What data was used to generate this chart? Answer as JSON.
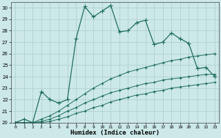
{
  "xlabel": "Humidex (Indice chaleur)",
  "ylabel": "",
  "xlim": [
    -0.5,
    23.5
  ],
  "ylim": [
    20,
    30.5
  ],
  "yticks": [
    20,
    21,
    22,
    23,
    24,
    25,
    26,
    27,
    28,
    29,
    30
  ],
  "xticks": [
    0,
    1,
    2,
    3,
    4,
    5,
    6,
    7,
    8,
    9,
    10,
    11,
    12,
    13,
    14,
    15,
    16,
    17,
    18,
    19,
    20,
    21,
    22,
    23
  ],
  "bg_color": "#cce8e8",
  "grid_color": "#aacccc",
  "line_color": "#1a6b5a",
  "series": [
    [
      20.0,
      20.3,
      20.0,
      22.7,
      22.0,
      21.7,
      22.0,
      27.3,
      30.1,
      29.2,
      29.7,
      30.2,
      27.9,
      28.0,
      28.7,
      28.9,
      26.8,
      27.0,
      27.8,
      27.3,
      26.9,
      24.7,
      24.8,
      24.0
    ],
    [
      20.0,
      20.0,
      20.0,
      20.3,
      20.6,
      21.0,
      21.5,
      22.0,
      22.5,
      23.0,
      23.4,
      23.8,
      24.1,
      24.4,
      24.6,
      24.8,
      25.0,
      25.2,
      25.4,
      25.5,
      25.7,
      25.8,
      25.9,
      26.0
    ],
    [
      20.0,
      20.0,
      20.0,
      20.1,
      20.3,
      20.6,
      21.0,
      21.3,
      21.7,
      22.0,
      22.3,
      22.6,
      22.8,
      23.0,
      23.2,
      23.4,
      23.5,
      23.7,
      23.8,
      23.9,
      24.0,
      24.1,
      24.2,
      24.2
    ],
    [
      20.0,
      20.0,
      20.0,
      20.0,
      20.1,
      20.3,
      20.5,
      20.8,
      21.0,
      21.3,
      21.5,
      21.8,
      22.0,
      22.2,
      22.4,
      22.5,
      22.7,
      22.8,
      23.0,
      23.1,
      23.2,
      23.3,
      23.4,
      23.5
    ]
  ]
}
